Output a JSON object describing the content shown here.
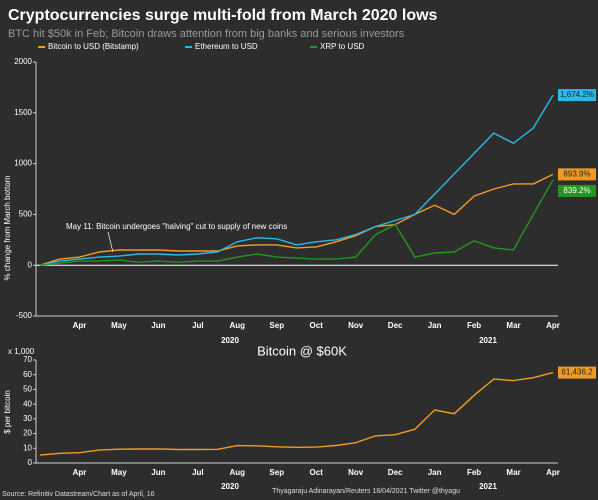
{
  "chart_data": [
    {
      "type": "line",
      "title": "Cryptocurrencies surge multi-fold from March 2020 lows",
      "subtitle": "BTC hit $50k in Feb; Bitcoin draws attention from big banks and serious investors",
      "y_label": "% change from March bottom",
      "categories": [
        null,
        null,
        "Apr",
        null,
        "May",
        null,
        "Jun",
        null,
        "Jul",
        null,
        "Aug",
        null,
        "Sep",
        null,
        "Oct",
        null,
        "Nov",
        null,
        "Dec",
        null,
        "Jan",
        null,
        "Feb",
        null,
        "Mar",
        null,
        "Apr"
      ],
      "year_labels": [
        "2020",
        "2021"
      ],
      "ylim": [
        -500,
        2000
      ],
      "yticks": [
        -500,
        0,
        500,
        1000,
        1500,
        2000
      ],
      "annotation": "May 11: Bitcoin undergoes \"halving\" cut to supply of new coins",
      "series": [
        {
          "name": "Bitcoin to USD (Bitstamp)",
          "color": "#f39a25",
          "values": [
            0,
            60,
            80,
            130,
            150,
            150,
            150,
            140,
            140,
            140,
            190,
            200,
            200,
            170,
            180,
            230,
            290,
            380,
            400,
            500,
            590,
            500,
            680,
            750,
            800,
            800,
            893.9
          ],
          "value_labels": [
            null,
            null,
            null,
            null,
            null,
            null,
            null,
            null,
            null,
            null,
            null,
            null,
            null,
            null,
            null,
            null,
            null,
            null,
            null,
            null,
            null,
            null,
            null,
            null,
            null,
            null,
            "893.9%"
          ]
        },
        {
          "name": "Ethereum to USD",
          "color": "#2bb8ea",
          "values": [
            0,
            40,
            60,
            80,
            90,
            110,
            110,
            100,
            110,
            130,
            230,
            270,
            260,
            200,
            230,
            250,
            300,
            380,
            440,
            500,
            700,
            900,
            1100,
            1300,
            1200,
            1350,
            1674.2
          ],
          "value_labels": [
            null,
            null,
            null,
            null,
            null,
            null,
            null,
            null,
            null,
            null,
            null,
            null,
            null,
            null,
            null,
            null,
            null,
            null,
            null,
            null,
            null,
            null,
            null,
            null,
            null,
            null,
            "1,674.2%"
          ]
        },
        {
          "name": "XRP to USD",
          "color": "#22961f",
          "values": [
            0,
            20,
            40,
            40,
            50,
            30,
            40,
            30,
            40,
            40,
            80,
            110,
            80,
            70,
            60,
            60,
            80,
            300,
            400,
            80,
            120,
            130,
            240,
            170,
            150,
            500,
            839.2
          ],
          "value_labels": [
            null,
            null,
            null,
            null,
            null,
            null,
            null,
            null,
            null,
            null,
            null,
            null,
            null,
            null,
            null,
            null,
            null,
            null,
            null,
            null,
            null,
            null,
            null,
            null,
            null,
            null,
            "839.2%"
          ]
        }
      ]
    },
    {
      "type": "line",
      "title": "Bitcoin @ $60K",
      "y_label": "$ per bitcoin",
      "y_unit": "x 1,000",
      "categories": [
        null,
        null,
        "Apr",
        null,
        "May",
        null,
        "Jun",
        null,
        "Jul",
        null,
        "Aug",
        null,
        "Sep",
        null,
        "Oct",
        null,
        "Nov",
        null,
        "Dec",
        null,
        "Jan",
        null,
        "Feb",
        null,
        "Mar",
        null,
        "Apr"
      ],
      "year_labels": [
        "2020",
        "2021"
      ],
      "ylim": [
        0,
        70
      ],
      "yticks": [
        0,
        10,
        20,
        30,
        40,
        50,
        60,
        70
      ],
      "series": [
        {
          "name": "Bitcoin",
          "color": "#f39a25",
          "values": [
            5.4,
            6.6,
            7.0,
            8.8,
            9.4,
            9.5,
            9.6,
            9.2,
            9.2,
            9.3,
            11.8,
            11.7,
            11.0,
            10.7,
            10.8,
            11.9,
            13.8,
            18.4,
            19.2,
            23.0,
            36.0,
            33.5,
            46.0,
            57.0,
            56.0,
            58.0,
            61.4362
          ],
          "value_labels": [
            null,
            null,
            null,
            null,
            null,
            null,
            null,
            null,
            null,
            null,
            null,
            null,
            null,
            null,
            null,
            null,
            null,
            null,
            null,
            null,
            null,
            null,
            null,
            null,
            null,
            null,
            "61,436.2"
          ]
        }
      ]
    }
  ],
  "footer": {
    "source": "Source: Refinitiv Datastream/Chart as of April, 16",
    "credit": "Thyagaraju Adinarayan/Reuters 18/04/2021 Twitter @thyagu"
  }
}
